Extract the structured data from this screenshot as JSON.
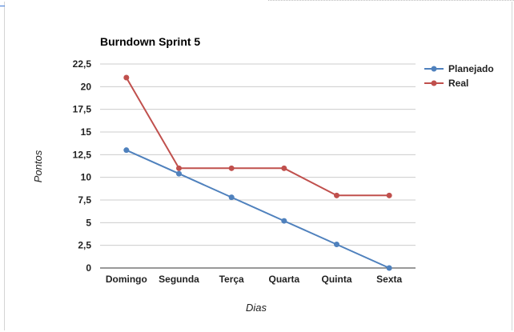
{
  "chart_data": {
    "type": "line",
    "title": "Burndown Sprint 5",
    "xlabel": "Dias",
    "ylabel": "Pontos",
    "categories": [
      "Domingo",
      "Segunda",
      "Terça",
      "Quarta",
      "Quinta",
      "Sexta"
    ],
    "ylim": [
      0,
      22.5
    ],
    "yticks": [
      "0",
      "2,5",
      "5",
      "7,5",
      "10",
      "12,5",
      "15",
      "17,5",
      "20",
      "22,5"
    ],
    "grid": true,
    "legend_position": "right",
    "series": [
      {
        "name": "Planejado",
        "color": "#4f81bd",
        "values": [
          13,
          10.4,
          7.8,
          5.2,
          2.6,
          0
        ]
      },
      {
        "name": "Real",
        "color": "#c0504d",
        "values": [
          21,
          11,
          11,
          11,
          8,
          8
        ]
      }
    ]
  }
}
